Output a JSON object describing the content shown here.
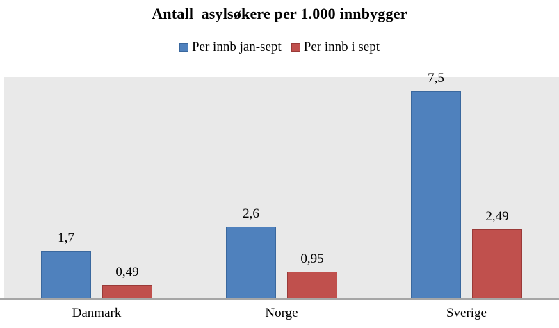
{
  "chart_data": {
    "type": "bar",
    "title": "Antall  asylsøkere per 1.000 innbygger",
    "categories": [
      "Danmark",
      "Norge",
      "Sverige"
    ],
    "series": [
      {
        "name": "Per innb jan-sept",
        "color": "#4F81BD",
        "border_color": "#3A689E",
        "values": [
          1.7,
          2.6,
          7.5
        ],
        "labels": [
          "1,7",
          "2,6",
          "7,5"
        ]
      },
      {
        "name": "Per innb i sept",
        "color": "#C0504D",
        "border_color": "#9A3A38",
        "values": [
          0.49,
          0.95,
          2.49
        ],
        "labels": [
          "0,49",
          "0,95",
          "2,49"
        ]
      }
    ],
    "xlabel": "",
    "ylabel": "",
    "ylim": [
      0,
      8
    ],
    "grid": false,
    "legend_position": "top",
    "plot_background": "#E9E9E9",
    "axis_line_color": "#A6A6A6",
    "value_label_position": "above-bar",
    "decimal_separator": ","
  }
}
